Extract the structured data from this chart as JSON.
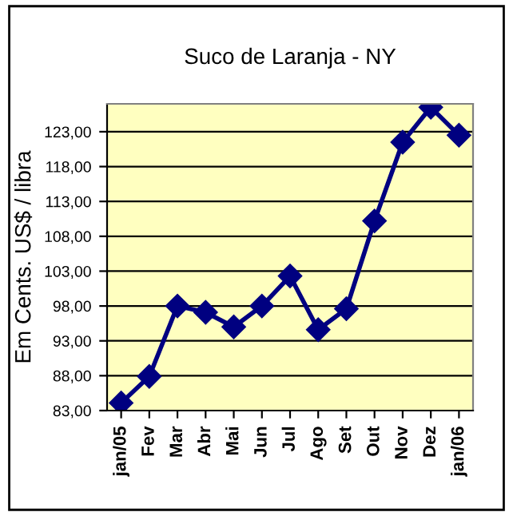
{
  "chart_data": {
    "type": "line",
    "title": "Suco de Laranja - NY",
    "ylabel": "Em Cents. US$ / libra",
    "categories": [
      "jan/05",
      "Fev",
      "Mar",
      "Abr",
      "Mai",
      "Jun",
      "Jul",
      "Ago",
      "Set",
      "Out",
      "Nov",
      "Dez",
      "jan/06"
    ],
    "series": [
      {
        "color": "#000080",
        "values": [
          84.1,
          87.9,
          98.0,
          97.1,
          95.0,
          98.0,
          102.3,
          94.6,
          97.6,
          110.2,
          121.5,
          126.5,
          122.5
        ]
      }
    ],
    "ylim": [
      83,
      127
    ],
    "yticks": [
      {
        "value": 83,
        "label": "83,00"
      },
      {
        "value": 88,
        "label": "88,00"
      },
      {
        "value": 93,
        "label": "93,00"
      },
      {
        "value": 98,
        "label": "98,00"
      },
      {
        "value": 103,
        "label": "103,00"
      },
      {
        "value": 108,
        "label": "108,00"
      },
      {
        "value": 113,
        "label": "113,00"
      },
      {
        "value": 118,
        "label": "118,00"
      },
      {
        "value": 123,
        "label": "123,00"
      }
    ],
    "grid": "y",
    "marker": "diamond",
    "line_style": "solid",
    "legend": false
  }
}
